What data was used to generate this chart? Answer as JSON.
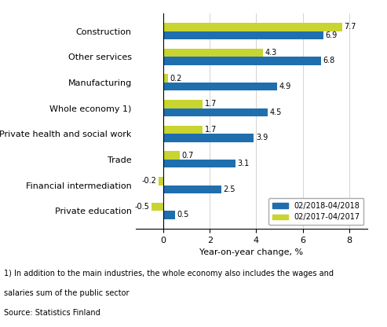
{
  "categories": [
    "Construction",
    "Other services",
    "Manufacturing",
    "Whole economy 1)",
    "Private health and social work",
    "Trade",
    "Financial intermediation",
    "Private education"
  ],
  "series_2018": [
    6.9,
    6.8,
    4.9,
    4.5,
    3.9,
    3.1,
    2.5,
    0.5
  ],
  "series_2017": [
    7.7,
    4.3,
    0.2,
    1.7,
    1.7,
    0.7,
    -0.2,
    -0.5
  ],
  "color_2018": "#1F6FAE",
  "color_2017": "#C8D430",
  "xlabel": "Year-on-year change, %",
  "xlim": [
    -1.2,
    8.8
  ],
  "xticks": [
    0,
    2,
    4,
    6,
    8
  ],
  "legend_2018": "02/2018-04/2018",
  "legend_2017": "02/2017-04/2017",
  "footnote1": "1) In addition to the main industries, the whole economy also includes the wages and",
  "footnote2": "salaries sum of the public sector",
  "footnote3": "Source: Statistics Finland",
  "bar_height": 0.32
}
